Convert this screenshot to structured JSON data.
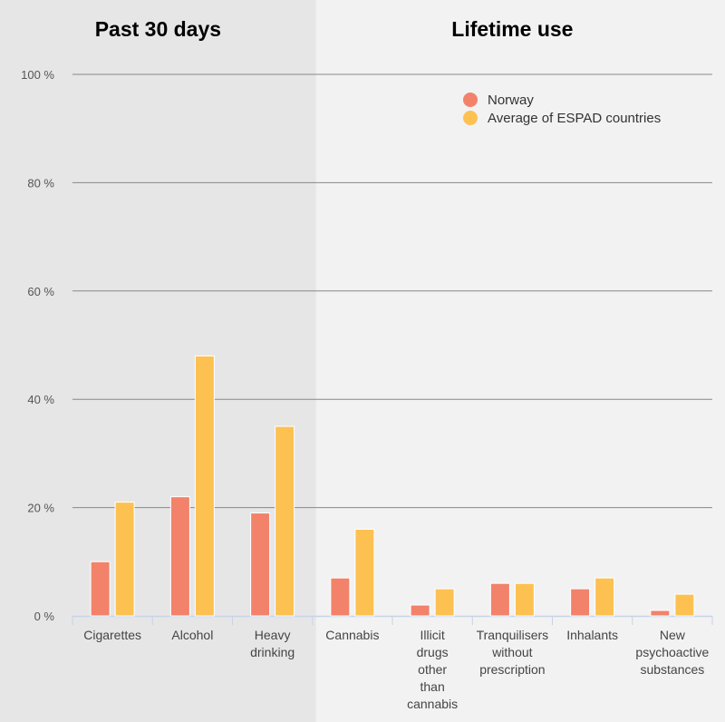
{
  "chart_data": {
    "type": "bar",
    "sections": [
      {
        "title": "Past 30 days",
        "categories": 3
      },
      {
        "title": "Lifetime use",
        "categories": 5
      }
    ],
    "categories": [
      [
        "Cigarettes"
      ],
      [
        "Alcohol"
      ],
      [
        "Heavy",
        "drinking"
      ],
      [
        "Cannabis"
      ],
      [
        "Illicit",
        "drugs",
        "other",
        "than",
        "cannabis"
      ],
      [
        "Tranquilisers",
        "without",
        "prescription"
      ],
      [
        "Inhalants"
      ],
      [
        "New",
        "psychoactive",
        "substances"
      ]
    ],
    "series": [
      {
        "name": "Norway",
        "color": "#f2826a",
        "values": [
          10,
          22,
          19,
          7,
          2,
          6,
          5,
          1
        ]
      },
      {
        "name": "Average of ESPAD countries",
        "color": "#fdc152",
        "values": [
          21,
          48,
          35,
          16,
          5,
          6,
          7,
          4
        ]
      }
    ],
    "ylim": [
      0,
      100
    ],
    "yticks": [
      0,
      20,
      40,
      60,
      80,
      100
    ],
    "ytick_suffix": " %",
    "grid": true,
    "legend": "top-right"
  }
}
